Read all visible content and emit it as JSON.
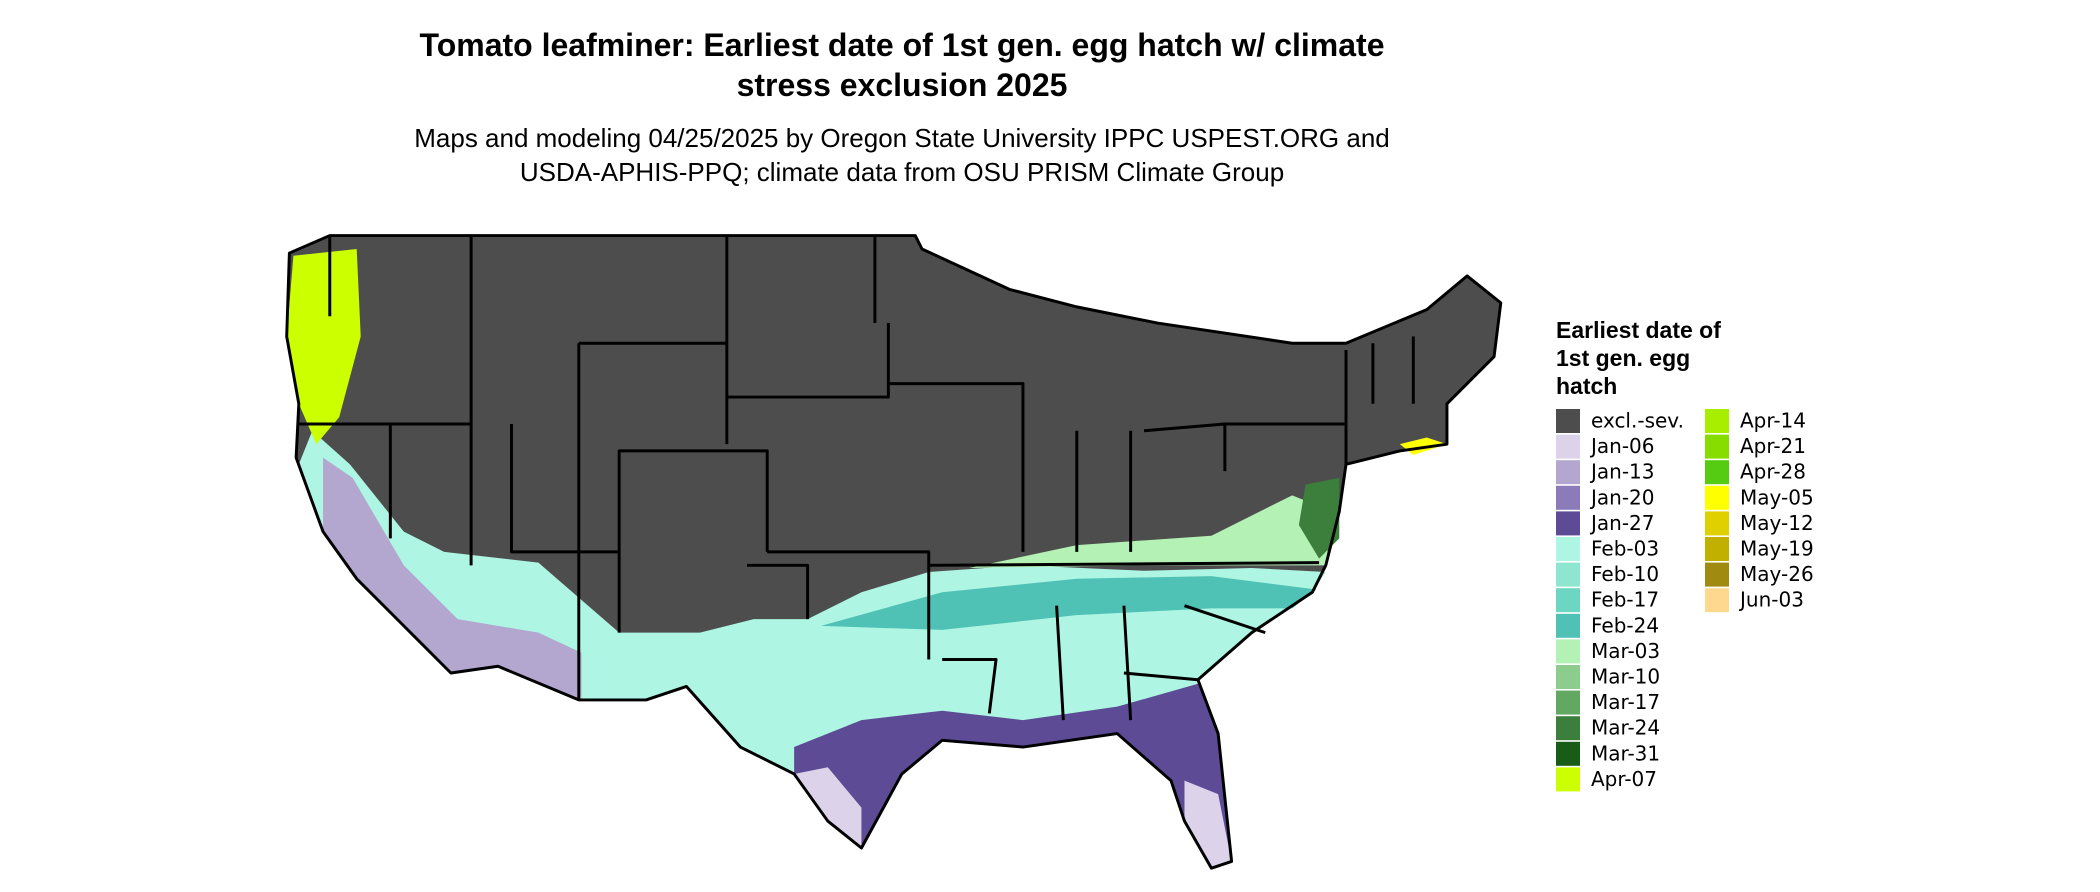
{
  "title": "Tomato leafminer: Earliest date of 1st gen. egg hatch w/ climate stress exclusion 2025",
  "subtitle": "Maps and modeling 04/25/2025 by Oregon State University IPPC USPEST.ORG and USDA-APHIS-PPQ; climate data from OSU PRISM Climate Group",
  "legend": {
    "title": "Earliest date of 1st gen. egg hatch",
    "items": [
      {
        "label": "excl.-sev.",
        "color": "#4d4d4d"
      },
      {
        "label": "Jan-06",
        "color": "#dcd3ea"
      },
      {
        "label": "Jan-13",
        "color": "#b3a7d0"
      },
      {
        "label": "Jan-20",
        "color": "#8b7bb8"
      },
      {
        "label": "Jan-27",
        "color": "#5e4b96"
      },
      {
        "label": "Feb-03",
        "color": "#aef5e3"
      },
      {
        "label": "Feb-10",
        "color": "#8ee6d0"
      },
      {
        "label": "Feb-17",
        "color": "#6dd6c2"
      },
      {
        "label": "Feb-24",
        "color": "#4fc2b5"
      },
      {
        "label": "Mar-03",
        "color": "#b4f1b4"
      },
      {
        "label": "Mar-10",
        "color": "#8ccc8c"
      },
      {
        "label": "Mar-17",
        "color": "#62a862"
      },
      {
        "label": "Mar-24",
        "color": "#3c7f3c"
      },
      {
        "label": "Mar-31",
        "color": "#185c18"
      },
      {
        "label": "Apr-07",
        "color": "#ccff00"
      },
      {
        "label": "Apr-14",
        "color": "#a8ee00"
      },
      {
        "label": "Apr-21",
        "color": "#88dd00"
      },
      {
        "label": "Apr-28",
        "color": "#55cc11"
      },
      {
        "label": "May-05",
        "color": "#ffff00"
      },
      {
        "label": "May-12",
        "color": "#e0d000"
      },
      {
        "label": "May-19",
        "color": "#c2b000"
      },
      {
        "label": "May-26",
        "color": "#a08a10"
      },
      {
        "label": "Jun-03",
        "color": "#ffd890"
      }
    ]
  }
}
